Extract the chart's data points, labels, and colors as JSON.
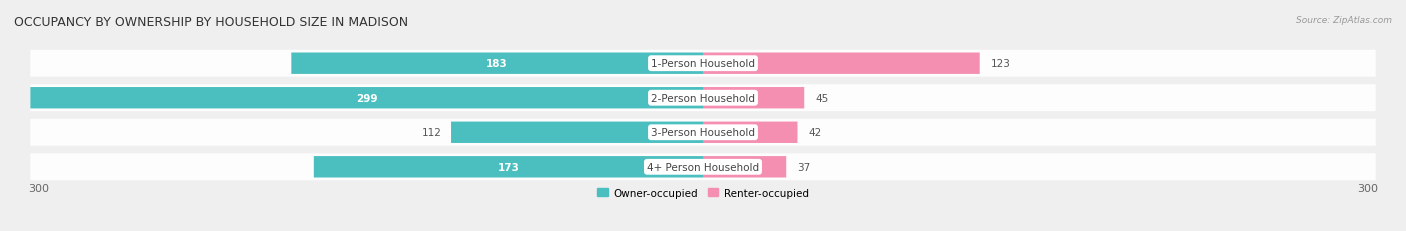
{
  "title": "OCCUPANCY BY OWNERSHIP BY HOUSEHOLD SIZE IN MADISON",
  "source": "Source: ZipAtlas.com",
  "categories": [
    "1-Person Household",
    "2-Person Household",
    "3-Person Household",
    "4+ Person Household"
  ],
  "owner_values": [
    183,
    299,
    112,
    173
  ],
  "renter_values": [
    123,
    45,
    42,
    37
  ],
  "owner_color": "#4bbfbf",
  "renter_color": "#f48fb1",
  "axis_max": 300,
  "bg_color": "#efefef",
  "title_fontsize": 9,
  "value_fontsize": 7.5,
  "cat_fontsize": 7.5,
  "tick_fontsize": 8,
  "source_fontsize": 6.5,
  "legend_fontsize": 7.5,
  "bar_height": 0.62,
  "legend_labels": [
    "Owner-occupied",
    "Renter-occupied"
  ]
}
